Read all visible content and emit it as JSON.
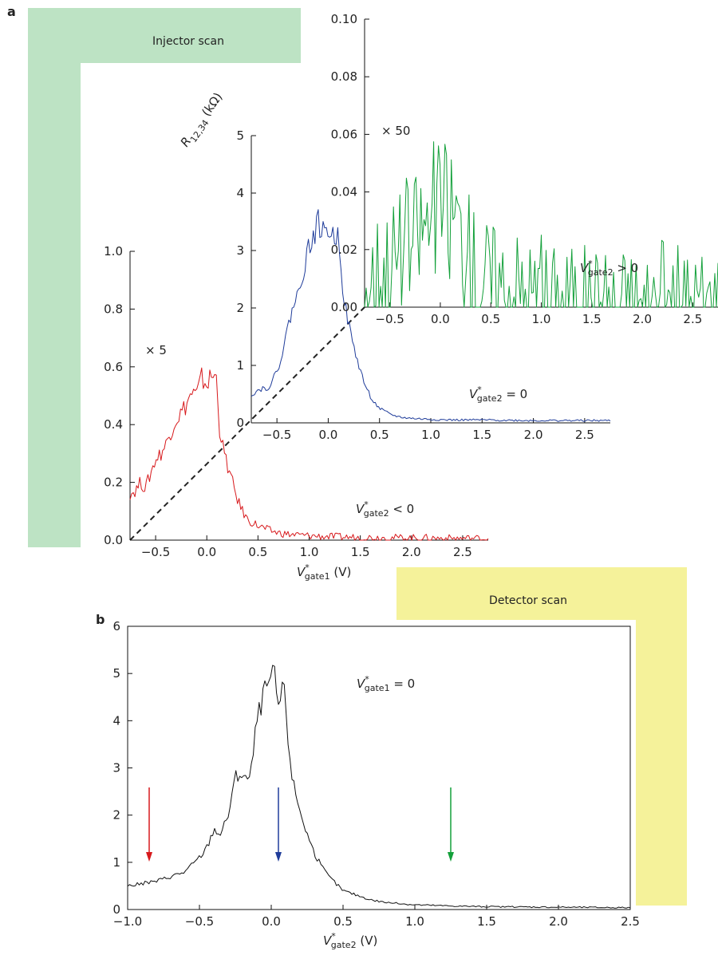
{
  "panels": {
    "a": "a",
    "b": "b"
  },
  "banners": {
    "injector": "Injector scan",
    "detector": "Detector scan"
  },
  "colors": {
    "injector_banner": "#bde3c4",
    "detector_banner": "#f5f29a",
    "red": "#d7191c",
    "blue": "#1f3c9a",
    "green": "#13a03a",
    "black": "#111111"
  },
  "chart_data": [
    {
      "id": "a-red",
      "type": "line",
      "panel": "a",
      "ylabel": "",
      "xlabel": "V*gate1 (V)",
      "xlabel_parts": [
        "V",
        "*",
        "gate1",
        " (V)"
      ],
      "xlim": [
        -0.75,
        2.75
      ],
      "ylim": [
        0,
        1.0
      ],
      "xticks": [
        -0.5,
        0.0,
        0.5,
        1.0,
        1.5,
        2.0,
        2.5
      ],
      "xtick_labels": [
        "−0.5",
        "0.0",
        "0.5",
        "1.0",
        "1.5",
        "2.0",
        "2.5"
      ],
      "yticks": [
        0.0,
        0.2,
        0.4,
        0.6,
        0.8,
        1.0
      ],
      "ytick_labels": [
        "0.0",
        "0.2",
        "0.4",
        "0.6",
        "0.8",
        "1.0"
      ],
      "multiplier": "× 5",
      "annotation_parts": [
        "V",
        "*",
        "gate2",
        " < 0"
      ],
      "series": [
        {
          "color": "#d7191c",
          "x": [
            -0.75,
            -0.7,
            -0.65,
            -0.6,
            -0.55,
            -0.5,
            -0.45,
            -0.4,
            -0.35,
            -0.3,
            -0.25,
            -0.2,
            -0.15,
            -0.1,
            -0.05,
            0.0,
            0.05,
            0.1,
            0.12,
            0.15,
            0.2,
            0.25,
            0.3,
            0.35,
            0.4,
            0.5,
            0.6,
            0.7,
            0.8,
            1.0,
            1.2,
            1.5,
            2.0,
            2.5,
            2.75
          ],
          "y": [
            0.16,
            0.17,
            0.2,
            0.18,
            0.23,
            0.28,
            0.3,
            0.33,
            0.38,
            0.42,
            0.44,
            0.47,
            0.51,
            0.5,
            0.56,
            0.54,
            0.57,
            0.56,
            0.4,
            0.33,
            0.26,
            0.2,
            0.14,
            0.1,
            0.07,
            0.05,
            0.035,
            0.025,
            0.02,
            0.015,
            0.012,
            0.009,
            0.008,
            0.006,
            0.006
          ]
        }
      ]
    },
    {
      "id": "a-blue",
      "type": "line",
      "panel": "a",
      "ylabel": "R12,34 (kΩ)",
      "ylabel_parts": [
        "R",
        "12,34",
        " (kΩ)"
      ],
      "xlim": [
        -0.75,
        2.75
      ],
      "ylim": [
        0,
        5
      ],
      "xticks": [
        -0.5,
        0.0,
        0.5,
        1.0,
        1.5,
        2.0,
        2.5
      ],
      "xtick_labels": [
        "−0.5",
        "0.0",
        "0.5",
        "1.0",
        "1.5",
        "2.0",
        "2.5"
      ],
      "yticks": [
        0,
        1,
        2,
        3,
        4,
        5
      ],
      "ytick_labels": [
        "0",
        "1",
        "2",
        "3",
        "4",
        "5"
      ],
      "annotation_parts": [
        "V",
        "*",
        "gate2",
        " = 0"
      ],
      "series": [
        {
          "color": "#1f3c9a",
          "x": [
            -0.75,
            -0.7,
            -0.65,
            -0.6,
            -0.55,
            -0.5,
            -0.45,
            -0.4,
            -0.35,
            -0.3,
            -0.25,
            -0.2,
            -0.15,
            -0.1,
            -0.05,
            0.0,
            0.05,
            0.1,
            0.12,
            0.15,
            0.2,
            0.25,
            0.3,
            0.35,
            0.4,
            0.45,
            0.5,
            0.6,
            0.7,
            0.8,
            1.0,
            1.2,
            1.5,
            2.0,
            2.5,
            2.75
          ],
          "y": [
            0.5,
            0.55,
            0.6,
            0.6,
            0.7,
            0.9,
            1.2,
            1.6,
            2.0,
            2.2,
            2.6,
            3.0,
            3.2,
            3.5,
            3.3,
            3.4,
            3.2,
            3.3,
            2.9,
            2.2,
            1.7,
            1.3,
            1.0,
            0.7,
            0.5,
            0.35,
            0.25,
            0.15,
            0.1,
            0.08,
            0.06,
            0.05,
            0.05,
            0.04,
            0.04,
            0.04
          ]
        }
      ]
    },
    {
      "id": "a-green",
      "type": "line",
      "panel": "a",
      "ylabel": "",
      "xlim": [
        -0.75,
        2.75
      ],
      "ylim": [
        0,
        0.1
      ],
      "xticks": [
        -0.5,
        0.0,
        0.5,
        1.0,
        1.5,
        2.0,
        2.5
      ],
      "xtick_labels": [
        "−0.5",
        "0.0",
        "0.5",
        "1.0",
        "1.5",
        "2.0",
        "2.5"
      ],
      "yticks": [
        0.0,
        0.02,
        0.04,
        0.06,
        0.08,
        0.1
      ],
      "ytick_labels": [
        "0.00",
        "0.02",
        "0.04",
        "0.06",
        "0.08",
        "0.10"
      ],
      "multiplier": "× 50",
      "annotation_parts": [
        "V",
        "*",
        "gate2",
        " > 0"
      ],
      "series": [
        {
          "color": "#13a03a",
          "x": [
            -0.75,
            -0.7,
            -0.6,
            -0.5,
            -0.4,
            -0.3,
            -0.2,
            -0.15,
            -0.1,
            -0.05,
            0.0,
            0.05,
            0.1,
            0.15,
            0.2,
            0.25,
            0.3,
            0.35,
            0.4,
            0.5,
            0.6,
            0.7,
            0.8,
            0.9,
            1.0,
            1.1,
            1.2,
            1.4,
            1.6,
            1.8,
            2.0,
            2.2,
            2.5,
            2.75
          ],
          "y": [
            0.009,
            0.01,
            0.013,
            0.016,
            0.019,
            0.022,
            0.027,
            0.029,
            0.031,
            0.035,
            0.037,
            0.034,
            0.033,
            0.032,
            0.025,
            0.02,
            0.016,
            0.014,
            0.012,
            0.009,
            0.008,
            0.006,
            0.006,
            0.004,
            0.003,
            0.002,
            0.002,
            0.001,
            0.001,
            0.001,
            0.001,
            0.001,
            0.001,
            0.001
          ]
        }
      ]
    },
    {
      "id": "b",
      "type": "line",
      "panel": "b",
      "ylabel": "",
      "xlabel": "V*gate2 (V)",
      "xlabel_parts": [
        "V",
        "*",
        "gate2",
        " (V)"
      ],
      "xlim": [
        -1.0,
        2.5
      ],
      "ylim": [
        0,
        6
      ],
      "xticks": [
        -1.0,
        -0.5,
        0.0,
        0.5,
        1.0,
        1.5,
        2.0,
        2.5
      ],
      "xtick_labels": [
        "−1.0",
        "−0.5",
        "0.0",
        "0.5",
        "1.0",
        "1.5",
        "2.0",
        "2.5"
      ],
      "yticks": [
        0,
        1,
        2,
        3,
        4,
        5,
        6
      ],
      "ytick_labels": [
        "0",
        "1",
        "2",
        "3",
        "4",
        "5",
        "6"
      ],
      "annotation_parts": [
        "V",
        "*",
        "gate1",
        " = 0"
      ],
      "arrows": [
        {
          "x": -0.85,
          "color": "#d7191c"
        },
        {
          "x": 0.05,
          "color": "#1f3c9a"
        },
        {
          "x": 1.25,
          "color": "#13a03a"
        }
      ],
      "series": [
        {
          "color": "#111111",
          "x": [
            -1.0,
            -0.9,
            -0.8,
            -0.7,
            -0.6,
            -0.5,
            -0.45,
            -0.4,
            -0.35,
            -0.3,
            -0.25,
            -0.2,
            -0.15,
            -0.1,
            -0.05,
            0.0,
            0.02,
            0.05,
            0.08,
            0.1,
            0.12,
            0.15,
            0.2,
            0.25,
            0.3,
            0.35,
            0.4,
            0.5,
            0.6,
            0.7,
            0.8,
            1.0,
            1.2,
            1.5,
            2.0,
            2.5
          ],
          "y": [
            0.5,
            0.55,
            0.6,
            0.7,
            0.8,
            1.1,
            1.3,
            1.7,
            1.6,
            2.0,
            2.8,
            2.9,
            2.7,
            4.0,
            4.6,
            4.9,
            5.0,
            4.3,
            4.7,
            4.4,
            3.5,
            2.7,
            2.1,
            1.6,
            1.2,
            0.9,
            0.7,
            0.4,
            0.3,
            0.2,
            0.15,
            0.1,
            0.08,
            0.06,
            0.05,
            0.04
          ]
        }
      ]
    }
  ]
}
